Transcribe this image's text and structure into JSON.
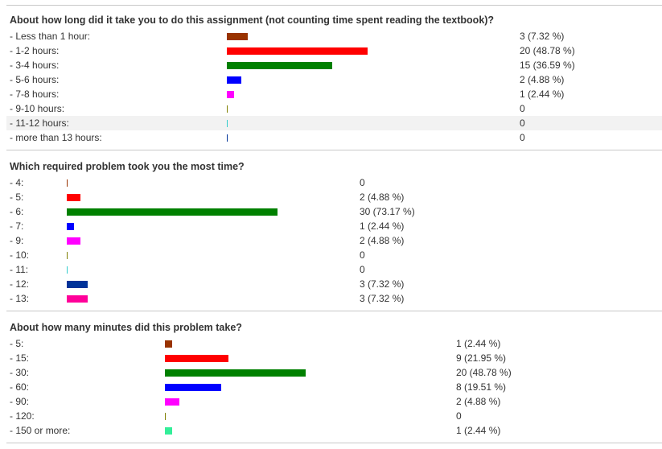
{
  "chart_data": [
    {
      "type": "bar",
      "title": "About how long did it take you to do this assignment (not counting time spent reading the textbook)?",
      "categories": [
        "- Less than 1 hour:",
        "- 1-2 hours:",
        "- 3-4 hours:",
        "- 5-6 hours:",
        "- 7-8 hours:",
        "- 9-10 hours:",
        "- 11-12 hours:",
        "- more than 13 hours:"
      ],
      "values": [
        3,
        20,
        15,
        2,
        1,
        0,
        0,
        0
      ],
      "value_labels": [
        "3 (7.32 %)",
        "20 (48.78 %)",
        "15 (36.59 %)",
        "2 (4.88 %)",
        "1 (2.44 %)",
        "0",
        "0",
        "0"
      ],
      "colors": [
        "#993300",
        "#ff0000",
        "#008000",
        "#0000ff",
        "#ff00ff",
        "#808000",
        "#33cccc",
        "#003399"
      ]
    },
    {
      "type": "bar",
      "title": "Which required problem took you the most time?",
      "categories": [
        "- 4:",
        "- 5:",
        "- 6:",
        "- 7:",
        "- 9:",
        "- 10:",
        "- 11:",
        "- 12:",
        "- 13:"
      ],
      "values": [
        0,
        2,
        30,
        1,
        2,
        0,
        0,
        3,
        3
      ],
      "value_labels": [
        "0",
        "2 (4.88 %)",
        "30 (73.17 %)",
        "1 (2.44 %)",
        "2 (4.88 %)",
        "0",
        "0",
        "3 (7.32 %)",
        "3 (7.32 %)"
      ],
      "colors": [
        "#993300",
        "#ff0000",
        "#008000",
        "#0000ff",
        "#ff00ff",
        "#808000",
        "#33cccc",
        "#003399",
        "#ff0099"
      ]
    },
    {
      "type": "bar",
      "title": "About how many minutes did this problem take?",
      "categories": [
        "- 5:",
        "- 15:",
        "- 30:",
        "- 60:",
        "- 90:",
        "- 120:",
        "- 150 or more:"
      ],
      "values": [
        1,
        9,
        20,
        8,
        2,
        0,
        1
      ],
      "value_labels": [
        "1 (2.44 %)",
        "9 (21.95 %)",
        "20 (48.78 %)",
        "8 (19.51 %)",
        "2 (4.88 %)",
        "0",
        "1 (2.44 %)"
      ],
      "colors": [
        "#993300",
        "#ff0000",
        "#008000",
        "#0000ff",
        "#ff00ff",
        "#808000",
        "#33ee99"
      ]
    }
  ]
}
